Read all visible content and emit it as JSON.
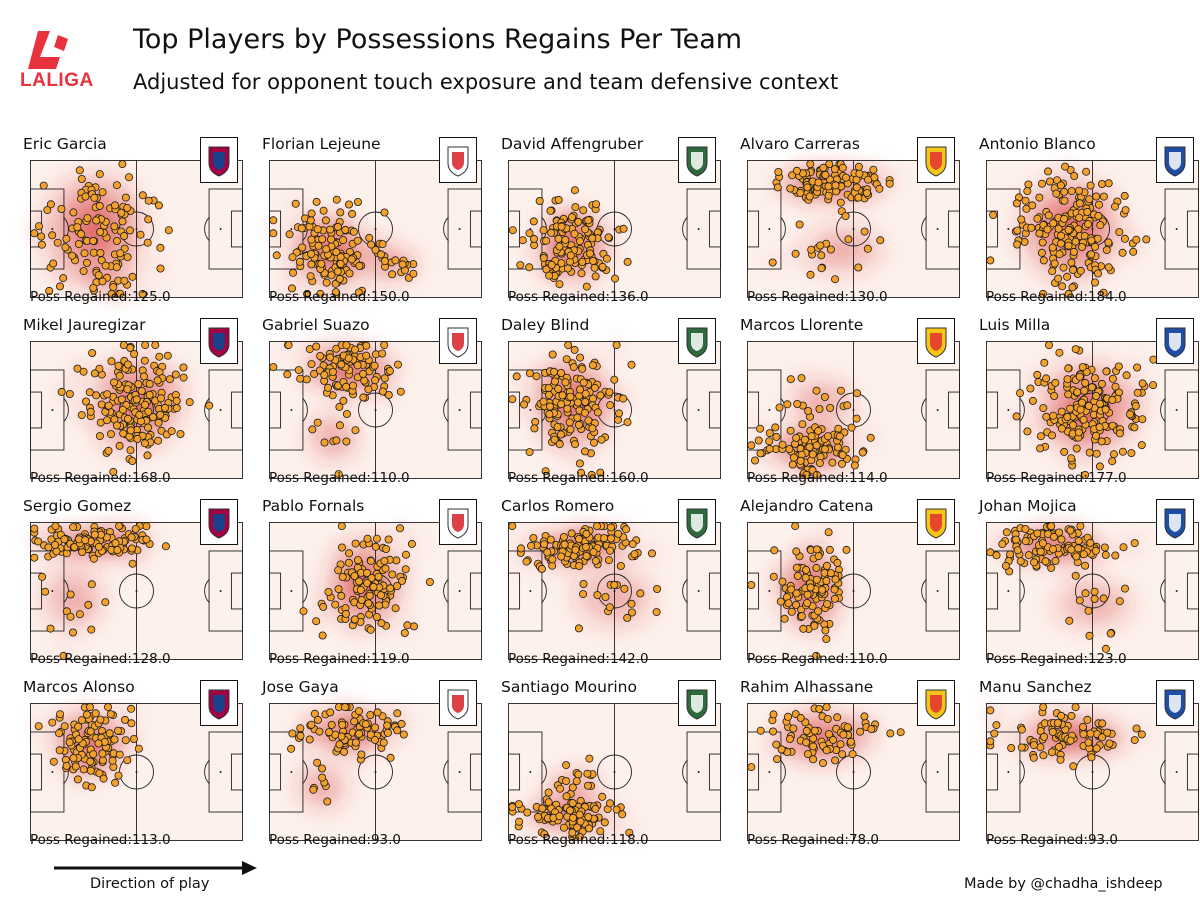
{
  "title": "Top Players by Possessions Regains Per Team",
  "subtitle": "Adjusted for opponent touch exposure and team defensive context",
  "logo_text": "LALIGA",
  "footer": {
    "direction_label": "Direction of play",
    "credit": "Made by @chadha_ishdeep"
  },
  "colors": {
    "dot_fill": "#f3a12c",
    "dot_stroke": "#1a1a1a",
    "heat": "#d42c2c",
    "pitch_bg": "#fdf1ec",
    "brand": "#e8323e"
  },
  "chart_data": {
    "type": "scatter",
    "title": "Top Players by Possessions Regains Per Team",
    "subtitle": "Adjusted for opponent touch exposure and team defensive context",
    "pitch_units": {
      "x": [
        0,
        100
      ],
      "y": [
        0,
        100
      ]
    },
    "stat_label": "Poss Regained:",
    "players": [
      {
        "name": "Eric Garcia",
        "team_icon": "barcelona-crest",
        "poss_regained": "125.0",
        "clusters": [
          {
            "x": 30,
            "y": 50,
            "sx": 18,
            "sy": 30,
            "n": 110
          },
          {
            "x": 35,
            "y": 85,
            "sx": 10,
            "sy": 8,
            "n": 15
          }
        ]
      },
      {
        "name": "Florian Lejeune",
        "team_icon": "rayo-vallecano-crest",
        "poss_regained": "150.0",
        "clusters": [
          {
            "x": 28,
            "y": 65,
            "sx": 14,
            "sy": 20,
            "n": 130
          },
          {
            "x": 55,
            "y": 75,
            "sx": 12,
            "sy": 12,
            "n": 20
          }
        ]
      },
      {
        "name": "David Affengruber",
        "team_icon": "elche-crest",
        "poss_regained": "136.0",
        "clusters": [
          {
            "x": 30,
            "y": 62,
            "sx": 13,
            "sy": 20,
            "n": 136
          }
        ]
      },
      {
        "name": "Alvaro Carreras",
        "team_icon": "real-madrid-crest",
        "poss_regained": "130.0",
        "clusters": [
          {
            "x": 40,
            "y": 18,
            "sx": 18,
            "sy": 10,
            "n": 110
          },
          {
            "x": 45,
            "y": 65,
            "sx": 15,
            "sy": 15,
            "n": 20
          }
        ]
      },
      {
        "name": "Antonio Blanco",
        "team_icon": "alaves-crest",
        "poss_regained": "184.0",
        "clusters": [
          {
            "x": 40,
            "y": 50,
            "sx": 18,
            "sy": 28,
            "n": 184
          }
        ]
      },
      {
        "name": "Mikel Jauregizar",
        "team_icon": "athletic-club-crest",
        "poss_regained": "168.0",
        "clusters": [
          {
            "x": 50,
            "y": 45,
            "sx": 16,
            "sy": 25,
            "n": 168
          }
        ]
      },
      {
        "name": "Gabriel Suazo",
        "team_icon": "sevilla-crest",
        "poss_regained": "110.0",
        "clusters": [
          {
            "x": 38,
            "y": 20,
            "sx": 16,
            "sy": 14,
            "n": 100
          },
          {
            "x": 30,
            "y": 70,
            "sx": 10,
            "sy": 15,
            "n": 10
          }
        ]
      },
      {
        "name": "Daley Blind",
        "team_icon": "girona-crest",
        "poss_regained": "160.0",
        "clusters": [
          {
            "x": 30,
            "y": 45,
            "sx": 14,
            "sy": 25,
            "n": 160
          }
        ]
      },
      {
        "name": "Marcos Llorente",
        "team_icon": "atletico-madrid-crest",
        "poss_regained": "114.0",
        "clusters": [
          {
            "x": 30,
            "y": 78,
            "sx": 15,
            "sy": 12,
            "n": 95
          },
          {
            "x": 35,
            "y": 45,
            "sx": 12,
            "sy": 15,
            "n": 19
          }
        ]
      },
      {
        "name": "Luis Milla",
        "team_icon": "getafe-crest",
        "poss_regained": "177.0",
        "clusters": [
          {
            "x": 48,
            "y": 50,
            "sx": 18,
            "sy": 25,
            "n": 177
          }
        ]
      },
      {
        "name": "Sergio Gomez",
        "team_icon": "real-sociedad-crest",
        "poss_regained": "128.0",
        "clusters": [
          {
            "x": 30,
            "y": 15,
            "sx": 20,
            "sy": 8,
            "n": 115
          },
          {
            "x": 20,
            "y": 55,
            "sx": 12,
            "sy": 20,
            "n": 13
          }
        ]
      },
      {
        "name": "Pablo Fornals",
        "team_icon": "real-betis-crest",
        "poss_regained": "119.0",
        "clusters": [
          {
            "x": 45,
            "y": 45,
            "sx": 14,
            "sy": 25,
            "n": 119
          }
        ]
      },
      {
        "name": "Carlos Romero",
        "team_icon": "espanyol-crest",
        "poss_regained": "142.0",
        "clusters": [
          {
            "x": 35,
            "y": 18,
            "sx": 18,
            "sy": 10,
            "n": 125
          },
          {
            "x": 50,
            "y": 55,
            "sx": 15,
            "sy": 18,
            "n": 17
          }
        ]
      },
      {
        "name": "Alejandro Catena",
        "team_icon": "osasuna-crest",
        "poss_regained": "110.0",
        "clusters": [
          {
            "x": 30,
            "y": 50,
            "sx": 12,
            "sy": 22,
            "n": 110
          }
        ]
      },
      {
        "name": "Johan Mojica",
        "team_icon": "mallorca-crest",
        "poss_regained": "123.0",
        "clusters": [
          {
            "x": 30,
            "y": 18,
            "sx": 18,
            "sy": 10,
            "n": 110
          },
          {
            "x": 50,
            "y": 60,
            "sx": 15,
            "sy": 15,
            "n": 13
          }
        ]
      },
      {
        "name": "Marcos Alonso",
        "team_icon": "celta-vigo-crest",
        "poss_regained": "113.0",
        "clusters": [
          {
            "x": 28,
            "y": 30,
            "sx": 13,
            "sy": 18,
            "n": 113
          }
        ]
      },
      {
        "name": "Jose Gaya",
        "team_icon": "valencia-crest",
        "poss_regained": "93.0",
        "clusters": [
          {
            "x": 38,
            "y": 20,
            "sx": 16,
            "sy": 12,
            "n": 85
          },
          {
            "x": 25,
            "y": 60,
            "sx": 10,
            "sy": 15,
            "n": 8
          }
        ]
      },
      {
        "name": "Santiago Mourino",
        "team_icon": "villarreal-crest",
        "poss_regained": "118.0",
        "clusters": [
          {
            "x": 28,
            "y": 82,
            "sx": 15,
            "sy": 8,
            "n": 100
          },
          {
            "x": 30,
            "y": 60,
            "sx": 10,
            "sy": 10,
            "n": 18
          }
        ]
      },
      {
        "name": "Rahim Alhassane",
        "team_icon": "oviedo-crest",
        "poss_regained": "78.0",
        "clusters": [
          {
            "x": 35,
            "y": 25,
            "sx": 18,
            "sy": 14,
            "n": 78
          }
        ]
      },
      {
        "name": "Manu Sanchez",
        "team_icon": "levante-crest",
        "poss_regained": "93.0",
        "clusters": [
          {
            "x": 40,
            "y": 25,
            "sx": 20,
            "sy": 12,
            "n": 93
          }
        ]
      }
    ]
  }
}
